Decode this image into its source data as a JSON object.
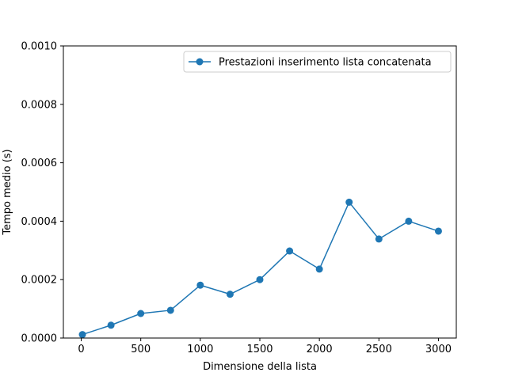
{
  "chart_data": {
    "type": "line",
    "title": "",
    "xlabel": "Dimensione della lista",
    "ylabel": "Tempo medio (s)",
    "xlim": [
      -150,
      3150
    ],
    "ylim": [
      0,
      0.001
    ],
    "xticks": [
      0,
      500,
      1000,
      1500,
      2000,
      2500,
      3000
    ],
    "xtick_labels": [
      "0",
      "500",
      "1000",
      "1500",
      "2000",
      "2500",
      "3000"
    ],
    "yticks": [
      0,
      0.0002,
      0.0004,
      0.0006,
      0.0008,
      0.001
    ],
    "ytick_labels": [
      "0.0000",
      "0.0002",
      "0.0004",
      "0.0006",
      "0.0008",
      "0.0010"
    ],
    "grid": false,
    "legend_position": "upper right",
    "colors": {
      "series": "#1f77b4",
      "axes": "#000000",
      "background": "#ffffff"
    },
    "series": [
      {
        "name": "Prestazioni inserimento lista concatenata",
        "marker": "circle",
        "x": [
          10,
          250,
          500,
          750,
          1000,
          1250,
          1500,
          1750,
          2000,
          2250,
          2500,
          2750,
          3000
        ],
        "y": [
          1.2e-05,
          4.4e-05,
          8.4e-05,
          9.5e-05,
          0.000181,
          0.00015,
          0.0002,
          0.000298,
          0.000236,
          0.000465,
          0.000339,
          0.0004,
          0.000366
        ]
      }
    ]
  }
}
